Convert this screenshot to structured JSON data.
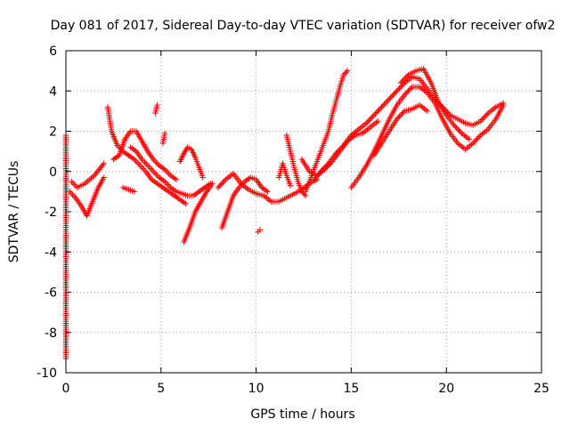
{
  "chart_data": {
    "type": "scatter",
    "title": "Day 081 of 2017, Sidereal Day-to-day VTEC variation (SDTVAR) for receiver ofw2",
    "xlabel": "GPS time / hours",
    "ylabel": "SDTVAR / TECUs",
    "xlim": [
      0,
      25
    ],
    "ylim": [
      -10,
      6
    ],
    "xticks": [
      "0",
      "5",
      "10",
      "15",
      "20",
      "25"
    ],
    "yticks": [
      "-10",
      "-8",
      "-6",
      "-4",
      "-2",
      "0",
      "2",
      "4",
      "6"
    ],
    "grid": true,
    "marker": "+",
    "color": "#ff0000",
    "series": [
      {
        "name": "SDTVAR",
        "tracks": [
          {
            "x": [
              0.2,
              0.5,
              0.8,
              1.1,
              1.4,
              1.7,
              2.0
            ],
            "y": [
              -1.0,
              -1.3,
              -1.7,
              -2.2,
              -1.5,
              -0.8,
              -0.3
            ]
          },
          {
            "x": [
              0.3,
              0.6,
              1.0,
              1.5,
              2.0
            ],
            "y": [
              -0.5,
              -0.8,
              -0.6,
              -0.2,
              0.4
            ]
          },
          {
            "x": [
              2.2,
              2.4,
              2.7,
              3.0,
              3.3,
              3.6,
              3.9,
              4.2,
              4.5,
              4.8,
              5.1,
              5.4,
              5.7,
              6.0,
              6.3
            ],
            "y": [
              3.2,
              2.0,
              1.3,
              1.0,
              0.8,
              0.6,
              0.3,
              0.0,
              -0.4,
              -0.6,
              -0.8,
              -1.0,
              -1.2,
              -1.4,
              -1.6
            ]
          },
          {
            "x": [
              2.5,
              2.8,
              3.1,
              3.4,
              3.7,
              4.0,
              4.3,
              4.6,
              4.9,
              5.2,
              5.5,
              5.8
            ],
            "y": [
              0.6,
              0.8,
              1.6,
              2.0,
              2.0,
              1.5,
              1.0,
              0.6,
              0.3,
              0.1,
              -0.2,
              -0.4
            ]
          },
          {
            "x": [
              3.4,
              3.7,
              4.0,
              4.3,
              4.6,
              4.9,
              5.2,
              5.5,
              5.8,
              6.1,
              6.4,
              6.7,
              7.0,
              7.3,
              7.6
            ],
            "y": [
              1.2,
              1.0,
              0.6,
              0.3,
              0.0,
              -0.3,
              -0.5,
              -0.8,
              -1.0,
              -1.1,
              -1.2,
              -1.2,
              -1.0,
              -0.8,
              -0.6
            ]
          },
          {
            "x": [
              6.0,
              6.2,
              6.4,
              6.6,
              6.8,
              7.0,
              7.2
            ],
            "y": [
              0.5,
              0.9,
              1.2,
              1.1,
              0.7,
              0.2,
              -0.3
            ]
          },
          {
            "x": [
              6.2,
              6.5,
              6.8,
              7.1,
              7.4,
              7.7
            ],
            "y": [
              -3.5,
              -2.8,
              -2.0,
              -1.5,
              -1.0,
              -0.6
            ]
          },
          {
            "x": [
              3.0,
              3.3,
              3.6
            ],
            "y": [
              -0.8,
              -0.9,
              -1.0
            ]
          },
          {
            "x": [
              4.7,
              4.8
            ],
            "y": [
              2.9,
              3.3
            ]
          },
          {
            "x": [
              5.1,
              5.2
            ],
            "y": [
              1.4,
              1.9
            ]
          },
          {
            "x": [
              8.0,
              8.4,
              8.8,
              9.2,
              9.6,
              10.0,
              10.4,
              10.8,
              11.2,
              11.6,
              12.0,
              12.4,
              12.8,
              13.2
            ],
            "y": [
              -0.8,
              -0.4,
              -0.1,
              -0.6,
              -0.9,
              -1.1,
              -1.2,
              -1.5,
              -1.5,
              -1.3,
              -1.1,
              -0.9,
              -0.6,
              -0.4
            ]
          },
          {
            "x": [
              8.2,
              8.5,
              8.8,
              9.1,
              9.4,
              9.7,
              10.0,
              10.3,
              10.6
            ],
            "y": [
              -2.8,
              -2.0,
              -1.2,
              -0.8,
              -0.5,
              -0.3,
              -0.4,
              -0.8,
              -1.0
            ]
          },
          {
            "x": [
              10.1,
              10.2
            ],
            "y": [
              -3.0,
              -2.9
            ]
          },
          {
            "x": [
              11.6,
              11.8,
              12.0,
              12.2,
              12.4,
              12.6
            ],
            "y": [
              1.8,
              1.0,
              0.2,
              -0.5,
              -1.0,
              -1.2
            ]
          },
          {
            "x": [
              12.6,
              12.8,
              13.0,
              13.2,
              13.4,
              13.6,
              13.8,
              14.0,
              14.2,
              14.4,
              14.6,
              14.8
            ],
            "y": [
              -1.0,
              -0.5,
              0.0,
              0.5,
              1.0,
              1.5,
              2.0,
              2.8,
              3.5,
              4.2,
              4.8,
              5.0
            ]
          },
          {
            "x": [
              11.2,
              11.4,
              11.6,
              11.8
            ],
            "y": [
              -0.3,
              0.4,
              -0.2,
              -0.7
            ]
          },
          {
            "x": [
              12.4,
              12.8,
              13.2,
              13.6,
              14.0,
              14.4,
              14.8,
              15.2,
              15.6,
              16.0,
              16.4
            ],
            "y": [
              0.6,
              0.0,
              -0.2,
              0.1,
              0.5,
              1.0,
              1.5,
              1.8,
              1.9,
              2.2,
              2.5
            ]
          },
          {
            "x": [
              13.0,
              13.4,
              13.8,
              14.2,
              14.6,
              15.0,
              15.4,
              15.8,
              16.2,
              16.6,
              17.0,
              17.4,
              17.8,
              18.2,
              18.6,
              19.0,
              19.4,
              19.8,
              20.2,
              20.6,
              21.0,
              21.4,
              21.8,
              22.2,
              22.6,
              23.0
            ],
            "y": [
              -0.5,
              0.0,
              0.4,
              0.9,
              1.3,
              1.8,
              2.1,
              2.4,
              2.8,
              3.2,
              3.6,
              4.0,
              4.4,
              4.7,
              4.6,
              4.1,
              3.6,
              3.2,
              2.8,
              2.6,
              2.4,
              2.3,
              2.5,
              2.9,
              3.2,
              3.4
            ]
          },
          {
            "x": [
              15.0,
              15.4,
              15.8,
              16.2,
              16.6,
              17.0,
              17.4,
              17.8,
              18.2,
              18.6,
              19.0,
              19.4,
              19.8,
              20.2,
              20.6,
              21.0,
              21.4,
              21.8,
              22.2,
              22.6,
              23.0
            ],
            "y": [
              -0.8,
              -0.3,
              0.3,
              1.0,
              1.8,
              2.6,
              3.3,
              3.8,
              4.2,
              4.2,
              3.9,
              3.4,
              2.6,
              1.9,
              1.4,
              1.1,
              1.4,
              1.8,
              2.1,
              2.6,
              3.3
            ]
          },
          {
            "x": [
              16.2,
              16.6,
              17.0,
              17.4,
              17.8,
              18.2,
              18.6,
              19.0
            ],
            "y": [
              0.8,
              1.4,
              2.0,
              2.6,
              3.0,
              3.1,
              3.3,
              3.0
            ]
          },
          {
            "x": [
              17.6,
              18.0,
              18.4,
              18.8,
              19.2,
              19.6,
              20.0,
              20.4,
              20.8,
              21.2
            ],
            "y": [
              4.4,
              4.8,
              5.0,
              5.1,
              4.4,
              3.4,
              2.8,
              2.3,
              1.9,
              1.6
            ]
          },
          {
            "x": [
              0.0,
              0.0,
              0.0
            ],
            "y": [
              1.8,
              -5.5,
              -9.3
            ]
          }
        ]
      }
    ]
  }
}
